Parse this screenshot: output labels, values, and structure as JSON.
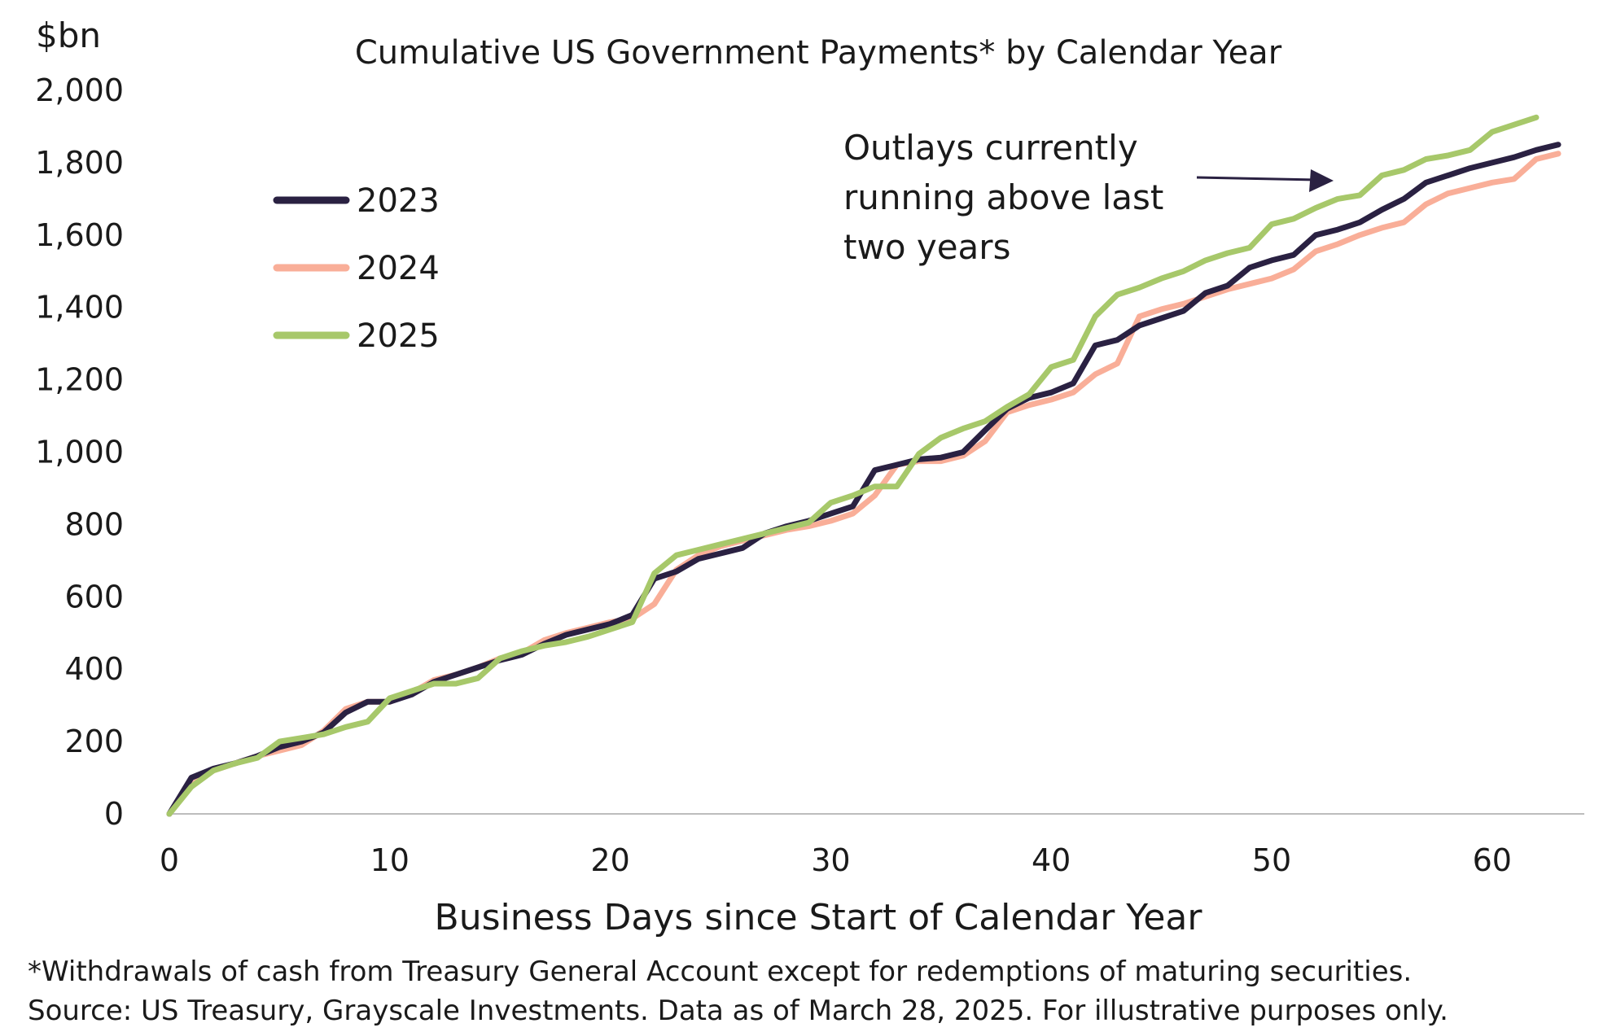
{
  "chart_data": {
    "type": "line",
    "title": "Cumulative US Government Payments* by Calendar Year",
    "ylabel": "$bn",
    "xlabel": "Business Days since Start of Calendar Year",
    "xlim": [
      0,
      63
    ],
    "ylim": [
      0,
      2000
    ],
    "x_ticks": [
      0,
      10,
      20,
      30,
      40,
      50,
      60
    ],
    "y_ticks": [
      0,
      200,
      400,
      600,
      800,
      1000,
      1200,
      1400,
      1600,
      1800,
      2000
    ],
    "y_tick_labels": [
      "0",
      "200",
      "400",
      "600",
      "800",
      "1,000",
      "1,200",
      "1,400",
      "1,600",
      "1,800",
      "2,000"
    ],
    "grid": false,
    "legend_position": "top-left",
    "annotation": {
      "lines": [
        "Outlays currently",
        "running above last",
        "two years"
      ],
      "arrow_color": "#2a2142"
    },
    "series": [
      {
        "name": "2023",
        "color": "#2a2142",
        "x": [
          0,
          1,
          2,
          3,
          4,
          5,
          6,
          7,
          8,
          9,
          10,
          11,
          12,
          13,
          14,
          15,
          16,
          17,
          18,
          19,
          20,
          21,
          22,
          23,
          24,
          25,
          26,
          27,
          28,
          29,
          30,
          31,
          32,
          33,
          34,
          35,
          36,
          37,
          38,
          39,
          40,
          41,
          42,
          43,
          44,
          45,
          46,
          47,
          48,
          49,
          50,
          51,
          52,
          53,
          54,
          55,
          56,
          57,
          58,
          59,
          60,
          61,
          62,
          63
        ],
        "values": [
          0,
          100,
          125,
          140,
          160,
          185,
          200,
          225,
          280,
          310,
          310,
          330,
          365,
          385,
          405,
          425,
          440,
          470,
          495,
          510,
          525,
          550,
          650,
          670,
          705,
          720,
          735,
          775,
          795,
          810,
          830,
          850,
          950,
          965,
          980,
          985,
          1000,
          1060,
          1120,
          1150,
          1165,
          1190,
          1295,
          1310,
          1350,
          1370,
          1390,
          1440,
          1460,
          1510,
          1530,
          1545,
          1600,
          1615,
          1635,
          1670,
          1700,
          1745,
          1765,
          1785,
          1800,
          1815,
          1835,
          1850
        ]
      },
      {
        "name": "2024",
        "color": "#f9ae98",
        "x": [
          0,
          1,
          2,
          3,
          4,
          5,
          6,
          7,
          8,
          9,
          10,
          11,
          12,
          13,
          14,
          15,
          16,
          17,
          18,
          19,
          20,
          21,
          22,
          23,
          24,
          25,
          26,
          27,
          28,
          29,
          30,
          31,
          32,
          33,
          34,
          35,
          36,
          37,
          38,
          39,
          40,
          41,
          42,
          43,
          44,
          45,
          46,
          47,
          48,
          49,
          50,
          51,
          52,
          53,
          54,
          55,
          56,
          57,
          58,
          59,
          60,
          61,
          62,
          63
        ],
        "values": [
          0,
          80,
          120,
          140,
          160,
          175,
          190,
          230,
          290,
          310,
          310,
          335,
          370,
          385,
          405,
          430,
          445,
          480,
          500,
          515,
          530,
          540,
          580,
          675,
          715,
          740,
          755,
          770,
          785,
          795,
          810,
          830,
          880,
          965,
          975,
          975,
          990,
          1030,
          1110,
          1130,
          1145,
          1165,
          1215,
          1245,
          1375,
          1395,
          1410,
          1430,
          1450,
          1465,
          1480,
          1505,
          1555,
          1575,
          1600,
          1620,
          1635,
          1685,
          1715,
          1730,
          1745,
          1755,
          1810,
          1825
        ]
      },
      {
        "name": "2025",
        "color": "#a7c86a",
        "x": [
          0,
          1,
          2,
          3,
          4,
          5,
          6,
          7,
          8,
          9,
          10,
          11,
          12,
          13,
          14,
          15,
          16,
          17,
          18,
          19,
          20,
          21,
          22,
          23,
          24,
          25,
          26,
          27,
          28,
          29,
          30,
          31,
          32,
          33,
          34,
          35,
          36,
          37,
          38,
          39,
          40,
          41,
          42,
          43,
          44,
          45,
          46,
          47,
          48,
          49,
          50,
          51,
          52,
          53,
          54,
          55,
          56,
          57,
          58,
          59,
          60,
          61,
          62
        ],
        "values": [
          0,
          75,
          120,
          140,
          155,
          200,
          210,
          220,
          240,
          255,
          320,
          340,
          360,
          360,
          375,
          430,
          450,
          465,
          475,
          490,
          510,
          530,
          665,
          715,
          730,
          745,
          760,
          775,
          790,
          805,
          860,
          880,
          905,
          905,
          995,
          1040,
          1065,
          1085,
          1125,
          1160,
          1235,
          1255,
          1375,
          1435,
          1455,
          1480,
          1500,
          1530,
          1550,
          1565,
          1630,
          1645,
          1675,
          1700,
          1710,
          1765,
          1780,
          1810,
          1820,
          1835,
          1885,
          1905,
          1925
        ]
      }
    ]
  },
  "footnotes": [
    "*Withdrawals of cash from Treasury General Account except for redemptions of maturing securities.",
    "Source: US Treasury, Grayscale Investments. Data as of March 28, 2025. For illustrative purposes only."
  ]
}
